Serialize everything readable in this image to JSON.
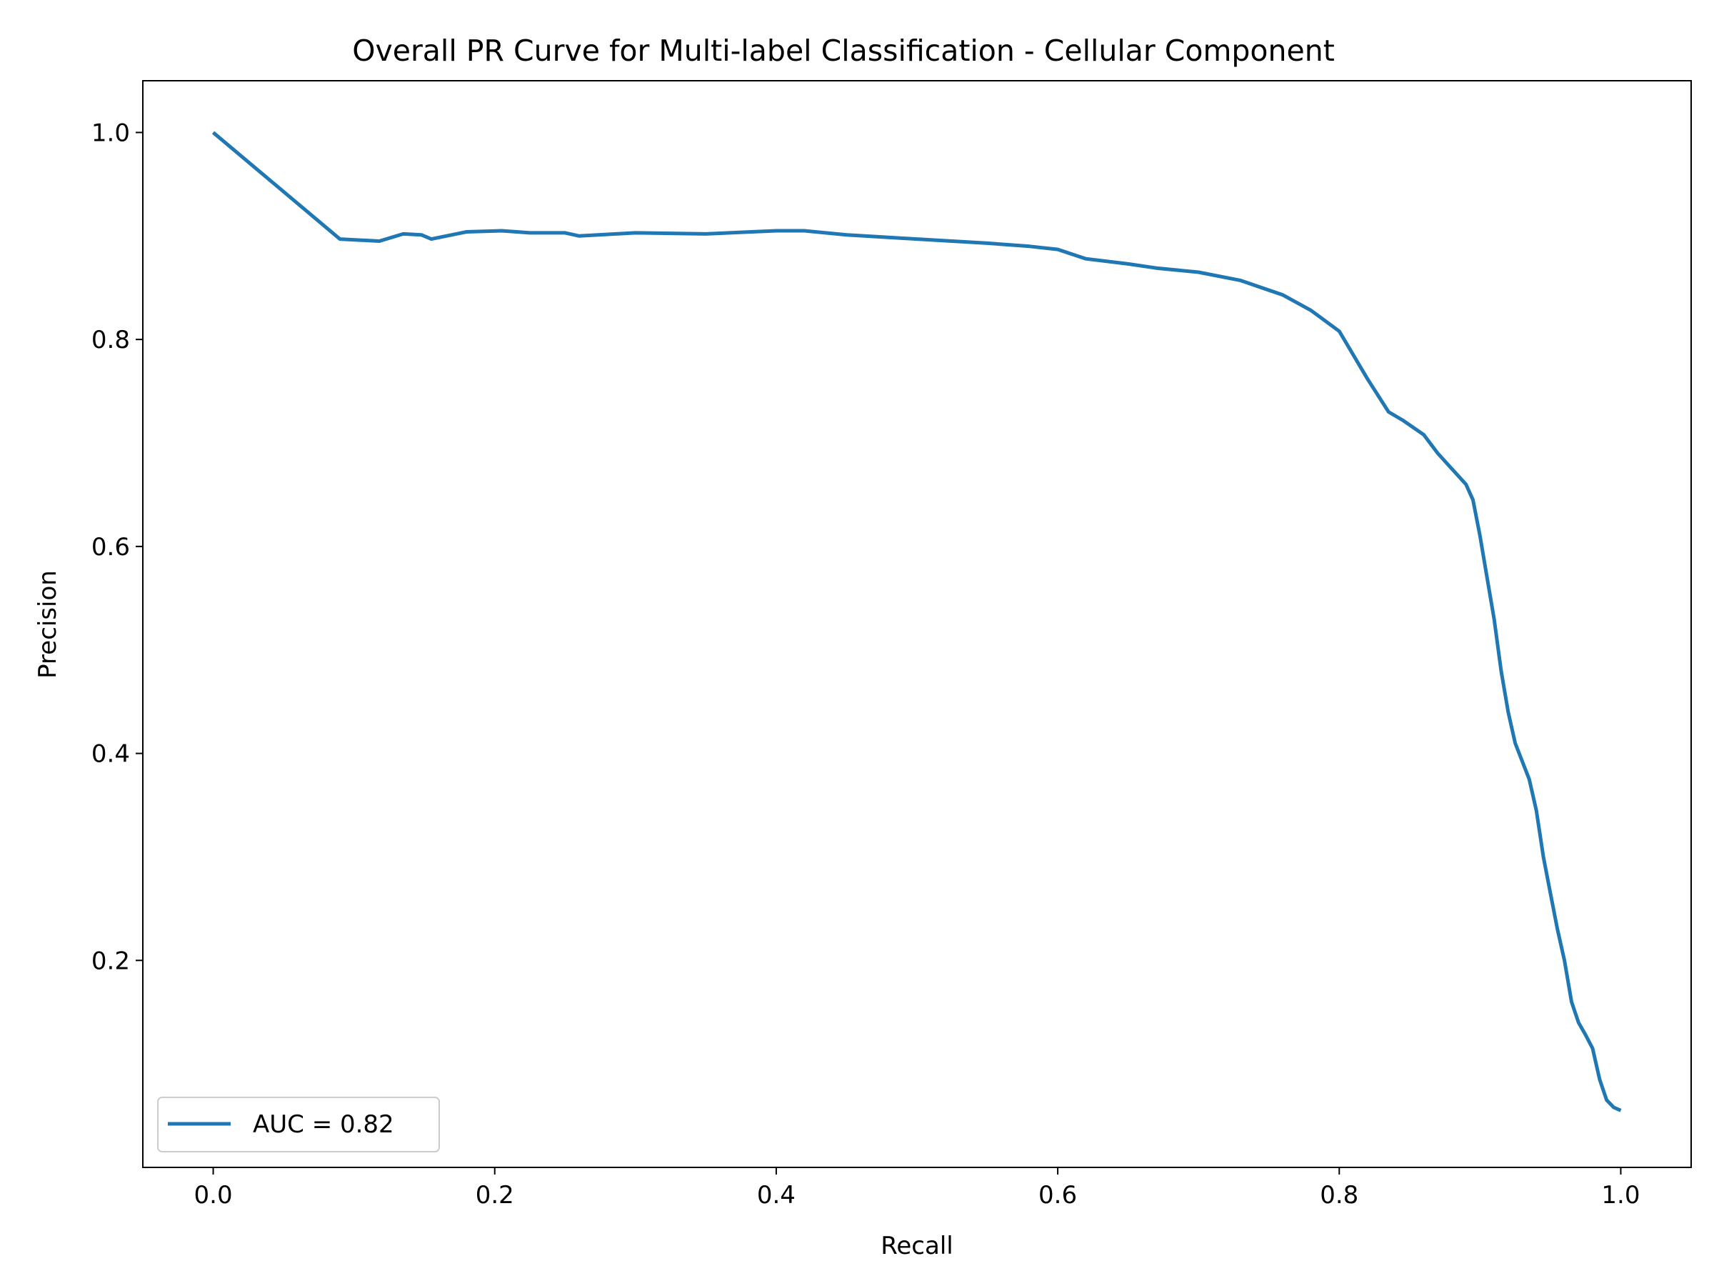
{
  "chart_data": {
    "type": "line",
    "title": "Overall PR Curve for Multi-label Classification - Cellular Component",
    "xlabel": "Recall",
    "ylabel": "Precision",
    "xlim": [
      -0.05,
      1.05
    ],
    "ylim": [
      0.0,
      1.05
    ],
    "xticks": [
      0.0,
      0.2,
      0.4,
      0.6,
      0.8,
      1.0
    ],
    "xtick_labels": [
      "0.0",
      "0.2",
      "0.4",
      "0.6",
      "0.8",
      "1.0"
    ],
    "yticks": [
      0.2,
      0.4,
      0.6,
      0.8,
      1.0
    ],
    "ytick_labels": [
      "0.2",
      "0.4",
      "0.6",
      "0.8",
      "1.0"
    ],
    "grid": false,
    "legend_position": "lower-left",
    "series": [
      {
        "name": "AUC = 0.82",
        "color": "#1f77b4",
        "x": [
          0.0,
          0.09,
          0.118,
          0.135,
          0.148,
          0.155,
          0.18,
          0.205,
          0.225,
          0.25,
          0.26,
          0.3,
          0.35,
          0.4,
          0.42,
          0.45,
          0.5,
          0.55,
          0.58,
          0.6,
          0.62,
          0.65,
          0.67,
          0.7,
          0.73,
          0.76,
          0.78,
          0.8,
          0.81,
          0.82,
          0.835,
          0.845,
          0.86,
          0.87,
          0.88,
          0.89,
          0.895,
          0.9,
          0.905,
          0.91,
          0.915,
          0.92,
          0.925,
          0.935,
          0.94,
          0.945,
          0.95,
          0.955,
          0.96,
          0.965,
          0.97,
          0.975,
          0.98,
          0.985,
          0.99,
          0.995,
          1.0
        ],
        "y": [
          1.0,
          0.897,
          0.895,
          0.902,
          0.901,
          0.897,
          0.904,
          0.905,
          0.903,
          0.903,
          0.9,
          0.903,
          0.902,
          0.905,
          0.905,
          0.901,
          0.897,
          0.893,
          0.89,
          0.887,
          0.878,
          0.873,
          0.869,
          0.865,
          0.857,
          0.843,
          0.828,
          0.808,
          0.785,
          0.762,
          0.73,
          0.722,
          0.708,
          0.69,
          0.675,
          0.66,
          0.645,
          0.61,
          0.57,
          0.53,
          0.48,
          0.44,
          0.41,
          0.375,
          0.345,
          0.3,
          0.265,
          0.23,
          0.2,
          0.16,
          0.14,
          0.128,
          0.115,
          0.085,
          0.065,
          0.058,
          0.055
        ]
      }
    ],
    "legend": {
      "entries": [
        "AUC = 0.82"
      ]
    }
  }
}
